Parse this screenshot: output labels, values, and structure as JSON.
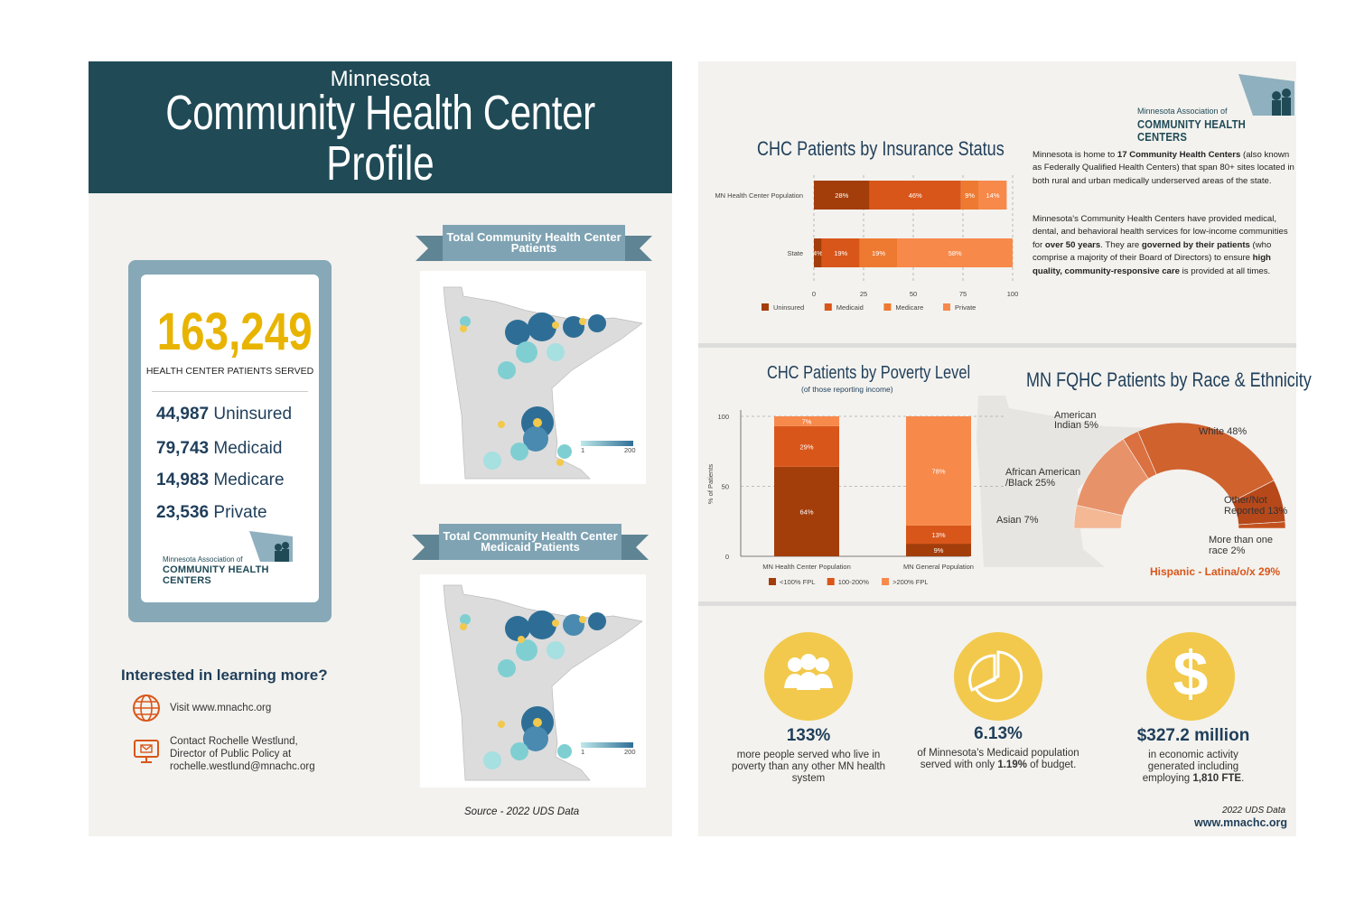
{
  "left": {
    "header": {
      "subtitle": "Minnesota",
      "title_line1": "Community Health Center",
      "title_line2": "Profile"
    },
    "card": {
      "total": "163,249",
      "total_label": "HEALTH CENTER PATIENTS SERVED",
      "stats": [
        {
          "num": "44,987",
          "label": "Uninsured"
        },
        {
          "num": "79,743",
          "label": "Medicaid"
        },
        {
          "num": "14,983",
          "label": "Medicare"
        },
        {
          "num": "23,536",
          "label": "Private"
        }
      ],
      "logo_line1": "Minnesota Association of",
      "logo_line2": "COMMUNITY HEALTH CENTERS"
    },
    "maps": {
      "banner1": "Total Community Health Center Patients",
      "banner2_line1": "Total Community Health Center",
      "banner2_line2": "Medicaid Patients",
      "legend_min": "1",
      "legend_max": "200"
    },
    "contact": {
      "heading": "Interested in learning more?",
      "visit": "Visit www.mnachc.org",
      "contact_l1": "Contact Rochelle Westlund,",
      "contact_l2": "Director of Public Policy at",
      "contact_l3": "rochelle.westlund@mnachc.org",
      "globe_icon": "globe-icon",
      "monitor_icon": "email-monitor-icon"
    },
    "source": "Source - 2022 UDS Data"
  },
  "right": {
    "logo_line1": "Minnesota Association of",
    "logo_line2": "COMMUNITY HEALTH CENTERS",
    "insurance_title": "CHC Patients by Insurance Status",
    "intro_p1": [
      "Minnesota is home to ",
      "17 Community Health Centers",
      " (also known as  Federally Qualified Health Centers) that span 80+ sites located in both rural and urban medically underserved areas of the state."
    ],
    "intro_p2": [
      "Minnesota's Community Health Centers have provided medical, dental, and behavioral health services for low-income communities for ",
      "over 50 years",
      ". They are ",
      "governed by their patients",
      " (who comprise a majority of their Board of Directors) to ensure ",
      "high quality, community-responsive care",
      " is provided at all times."
    ],
    "poverty_title": "CHC Patients by Poverty Level",
    "poverty_subtitle": "(of those reporting income)",
    "race_title": "MN FQHC Patients by Race & Ethnicity",
    "race_labels": {
      "american_indian_l1": "American",
      "american_indian_l2": "Indian 5%",
      "white": "White 48%",
      "african_l1": "African American",
      "african_l2": "/Black 25%",
      "other_l1": "Other/Not",
      "other_l2": "Reported 13%",
      "asian": "Asian 7%",
      "multi_l1": "More than one",
      "multi_l2": "race 2%",
      "hispanic": "Hispanic - Latina/o/x  29%"
    },
    "kpis": [
      {
        "value": "133%",
        "desc_l1": "more people served who live in",
        "desc_l2": "poverty  than any other MN health",
        "desc_l3": "system",
        "icon": "people-icon"
      },
      {
        "value": "6.13%",
        "desc_l1": "of Minnesota's Medicaid population",
        "desc_l2a": "served with only  ",
        "desc_l2b": "1.19%",
        "desc_l2c": " of budget.",
        "icon": "pie-chart-icon"
      },
      {
        "value": "$327.2 million",
        "desc_l1": "in economic activity",
        "desc_l2": "generated including",
        "desc_l3a": "employing ",
        "desc_l3b": "1,810 FTE",
        "desc_l3c": ".",
        "icon": "dollar-icon"
      }
    ],
    "footer_note": "2022 UDS Data",
    "footer_url": "www.mnachc.org"
  },
  "colors": {
    "dark": "#a33e0b",
    "mid": "#d9561a",
    "light": "#ee7a31",
    "lighter": "#f7894b",
    "navy": "#1f4a56",
    "gold": "#e8b400"
  },
  "chart_data": [
    {
      "type": "bar",
      "orientation": "horizontal",
      "stacked": true,
      "title": "CHC Patients by Insurance Status",
      "categories": [
        "MN Health Center Population",
        "State"
      ],
      "series": [
        {
          "name": "Uninsured",
          "values": [
            28,
            4
          ]
        },
        {
          "name": "Medicaid",
          "values": [
            46,
            19
          ]
        },
        {
          "name": "Medicare",
          "values": [
            9,
            19
          ]
        },
        {
          "name": "Private",
          "values": [
            14,
            58
          ]
        }
      ],
      "xlim": [
        0,
        100
      ],
      "xticks": [
        "0",
        "25",
        "50",
        "75",
        "100"
      ],
      "legend": "bottom"
    },
    {
      "type": "bar",
      "stacked": true,
      "title": "CHC Patients by Poverty Level",
      "subtitle": "(of those reporting income)",
      "ylabel": "% of Patients",
      "categories": [
        "MN Health Center Population",
        "MN General Population"
      ],
      "series": [
        {
          "name": "<100% FPL",
          "values": [
            64,
            9
          ]
        },
        {
          "name": "100-200%",
          "values": [
            29,
            13
          ]
        },
        {
          "name": ">200% FPL",
          "values": [
            7,
            78
          ]
        }
      ],
      "ylim": [
        0,
        100
      ],
      "yticks": [
        "0",
        "50",
        "100"
      ],
      "legend": "bottom"
    },
    {
      "type": "pie",
      "style": "half-donut",
      "title": "MN FQHC Patients by Race & Ethnicity",
      "slices": [
        {
          "label": "Asian",
          "value": 7
        },
        {
          "label": "African American /Black",
          "value": 25
        },
        {
          "label": "American Indian",
          "value": 5
        },
        {
          "label": "White",
          "value": 48
        },
        {
          "label": "Other/Not Reported",
          "value": 13
        },
        {
          "label": "More than one race",
          "value": 2
        }
      ]
    }
  ]
}
